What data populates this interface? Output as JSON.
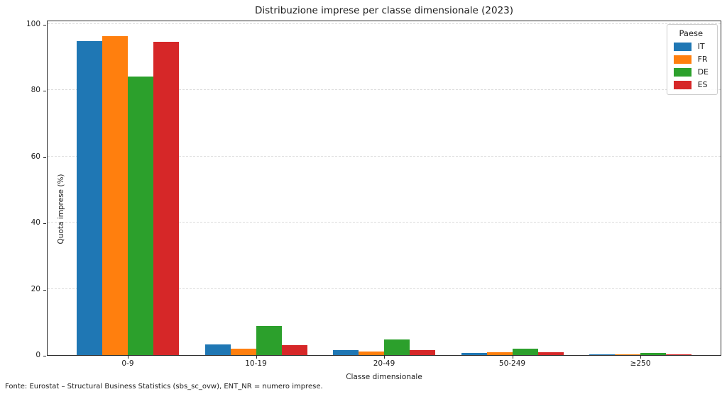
{
  "footer": "Fonte: Eurostat – Structural Business Statistics (sbs_sc_ovw), ENT_NR = numero imprese.",
  "chart_data": {
    "type": "bar",
    "title": "Distribuzione imprese per classe dimensionale (2023)",
    "xlabel": "Classe dimensionale",
    "ylabel": "Quota imprese (%)",
    "categories": [
      "0-9",
      "10-19",
      "20-49",
      "50-249",
      "≥250"
    ],
    "series": [
      {
        "name": "IT",
        "color": "#1f77b4",
        "values": [
          94.8,
          3.3,
          1.4,
          0.6,
          0.1
        ]
      },
      {
        "name": "FR",
        "color": "#ff7f0e",
        "values": [
          96.4,
          2.0,
          1.0,
          0.8,
          0.2
        ]
      },
      {
        "name": "DE",
        "color": "#2ca02c",
        "values": [
          84.2,
          8.7,
          4.7,
          2.0,
          0.6
        ]
      },
      {
        "name": "ES",
        "color": "#d62728",
        "values": [
          94.6,
          3.0,
          1.6,
          0.8,
          0.2
        ]
      }
    ],
    "legend": {
      "title": "Paese",
      "position": "upper right"
    },
    "ylim": [
      0,
      101.25
    ],
    "yticks": [
      0,
      20,
      40,
      60,
      80,
      100
    ],
    "grid": "horizontal-dashed"
  }
}
